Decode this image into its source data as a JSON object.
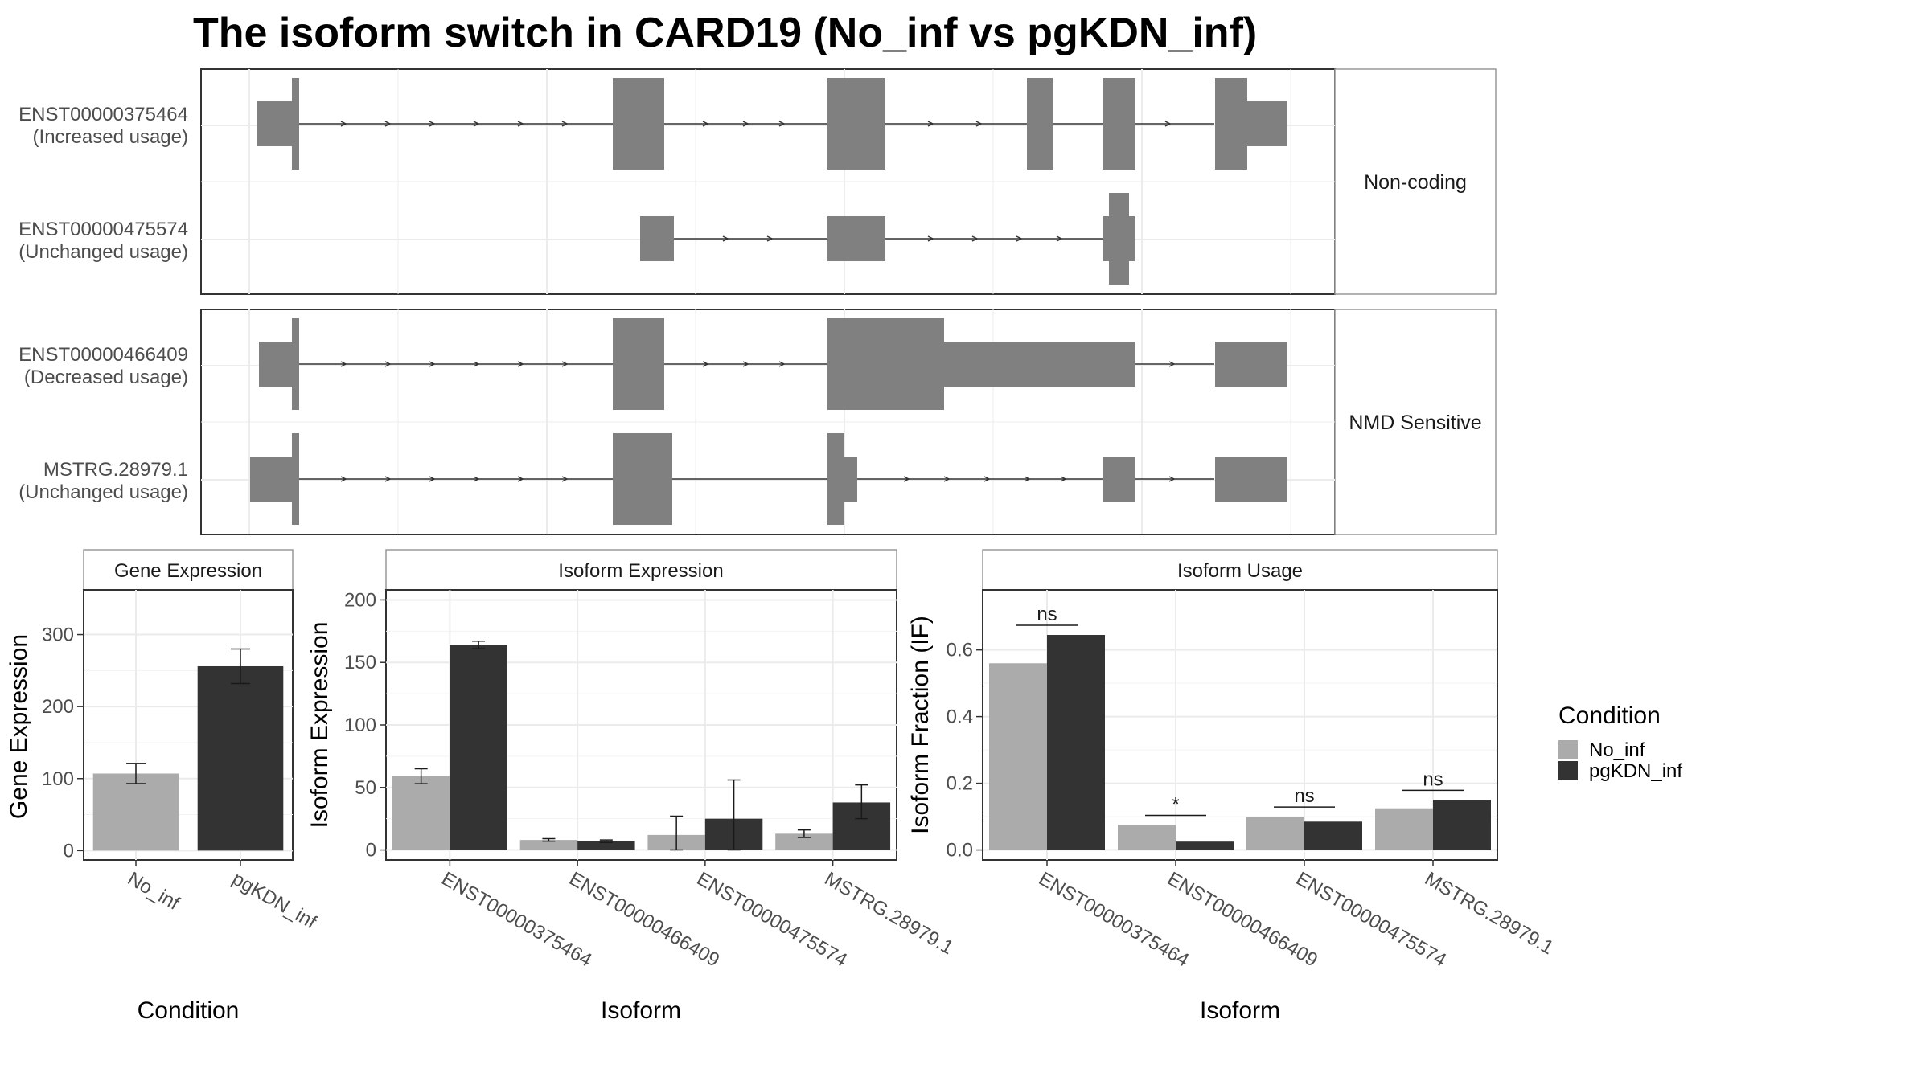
{
  "title": "The isoform switch in CARD19 (No_inf vs pgKDN_inf)",
  "colors": {
    "no_inf": "#ababab",
    "pgkdn_inf": "#333333",
    "exon": "#808080",
    "intron": "#333333",
    "grid": "#ebebeb",
    "strip_bg": "#ffffff",
    "panel_border": "#333333"
  },
  "legend": {
    "title": "Condition",
    "items": [
      {
        "label": "No_inf",
        "color": "#ababab"
      },
      {
        "label": "pgKDN_inf",
        "color": "#333333"
      }
    ]
  },
  "structure": {
    "groups": [
      {
        "label": "Non-coding",
        "transcripts": [
          {
            "id": "ENST00000375464",
            "usage": "(Increased usage)"
          },
          {
            "id": "ENST00000475574",
            "usage": "(Unchanged usage)"
          }
        ]
      },
      {
        "label": "NMD Sensitive",
        "transcripts": [
          {
            "id": "ENST00000466409",
            "usage": "(Decreased usage)"
          },
          {
            "id": "MSTRG.28979.1",
            "usage": "(Unchanged usage)"
          }
        ]
      }
    ]
  },
  "chart_data": [
    {
      "type": "bar",
      "title": "Gene Expression",
      "xlabel": "Condition",
      "ylabel": "Gene Expression",
      "categories": [
        "No_inf",
        "pgKDN_inf"
      ],
      "values": [
        107,
        256
      ],
      "errors": [
        [
          93,
          121
        ],
        [
          232,
          280
        ]
      ],
      "ylim": [
        -13,
        362
      ],
      "yticks": [
        0,
        100,
        200,
        300
      ]
    },
    {
      "type": "bar",
      "title": "Isoform Expression",
      "xlabel": "Isoform",
      "ylabel": "Isoform Expression",
      "categories": [
        "ENST00000375464",
        "ENST00000466409",
        "ENST00000475574",
        "MSTRG.28979.1"
      ],
      "series": [
        {
          "name": "No_inf",
          "values": [
            59,
            8,
            12,
            13
          ],
          "errors": [
            [
              53,
              65
            ],
            [
              7,
              9
            ],
            [
              0,
              27
            ],
            [
              10,
              16
            ]
          ]
        },
        {
          "name": "pgKDN_inf",
          "values": [
            164,
            7,
            25,
            38
          ],
          "errors": [
            [
              161,
              167
            ],
            [
              6,
              8
            ],
            [
              0,
              56
            ],
            [
              25,
              52
            ]
          ]
        }
      ],
      "ylim": [
        -8,
        208
      ],
      "yticks": [
        0,
        50,
        100,
        150,
        200
      ]
    },
    {
      "type": "bar",
      "title": "Isoform Usage",
      "xlabel": "Isoform",
      "ylabel": "Isoform Fraction (IF)",
      "categories": [
        "ENST00000375464",
        "ENST00000466409",
        "ENST00000475574",
        "MSTRG.28979.1"
      ],
      "series": [
        {
          "name": "No_inf",
          "values": [
            0.56,
            0.075,
            0.1,
            0.125
          ]
        },
        {
          "name": "pgKDN_inf",
          "values": [
            0.645,
            0.025,
            0.085,
            0.15
          ]
        }
      ],
      "significance": [
        "ns",
        "*",
        "ns",
        "ns"
      ],
      "ylim": [
        -0.03,
        0.78
      ],
      "yticks": [
        "0.0",
        "0.2",
        "0.4",
        "0.6"
      ]
    }
  ]
}
